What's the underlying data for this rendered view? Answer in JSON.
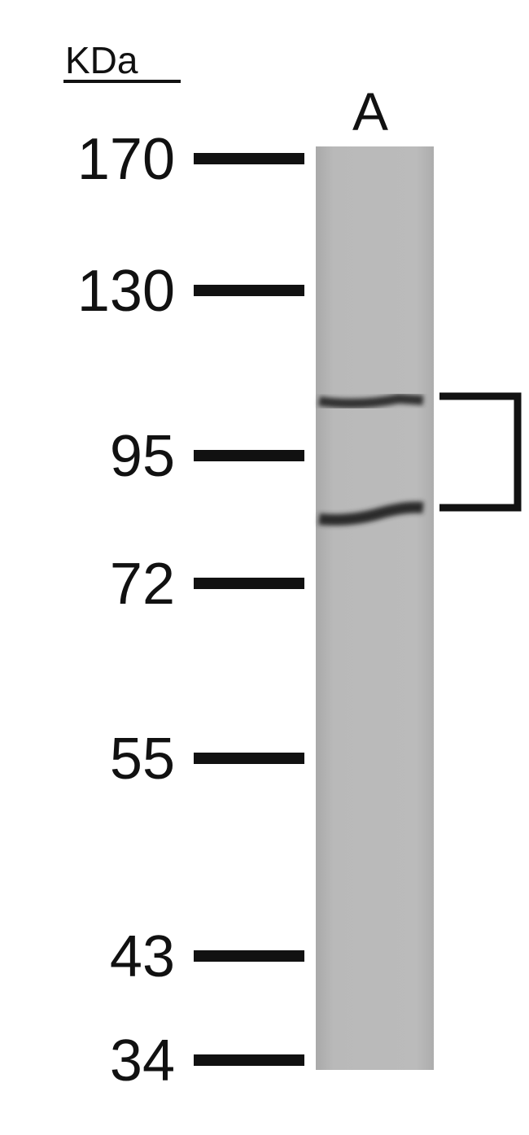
{
  "header": {
    "unit": "KDa",
    "lane": "A"
  },
  "markers": [
    "170",
    "130",
    "95",
    "72",
    "55",
    "43",
    "34"
  ]
}
